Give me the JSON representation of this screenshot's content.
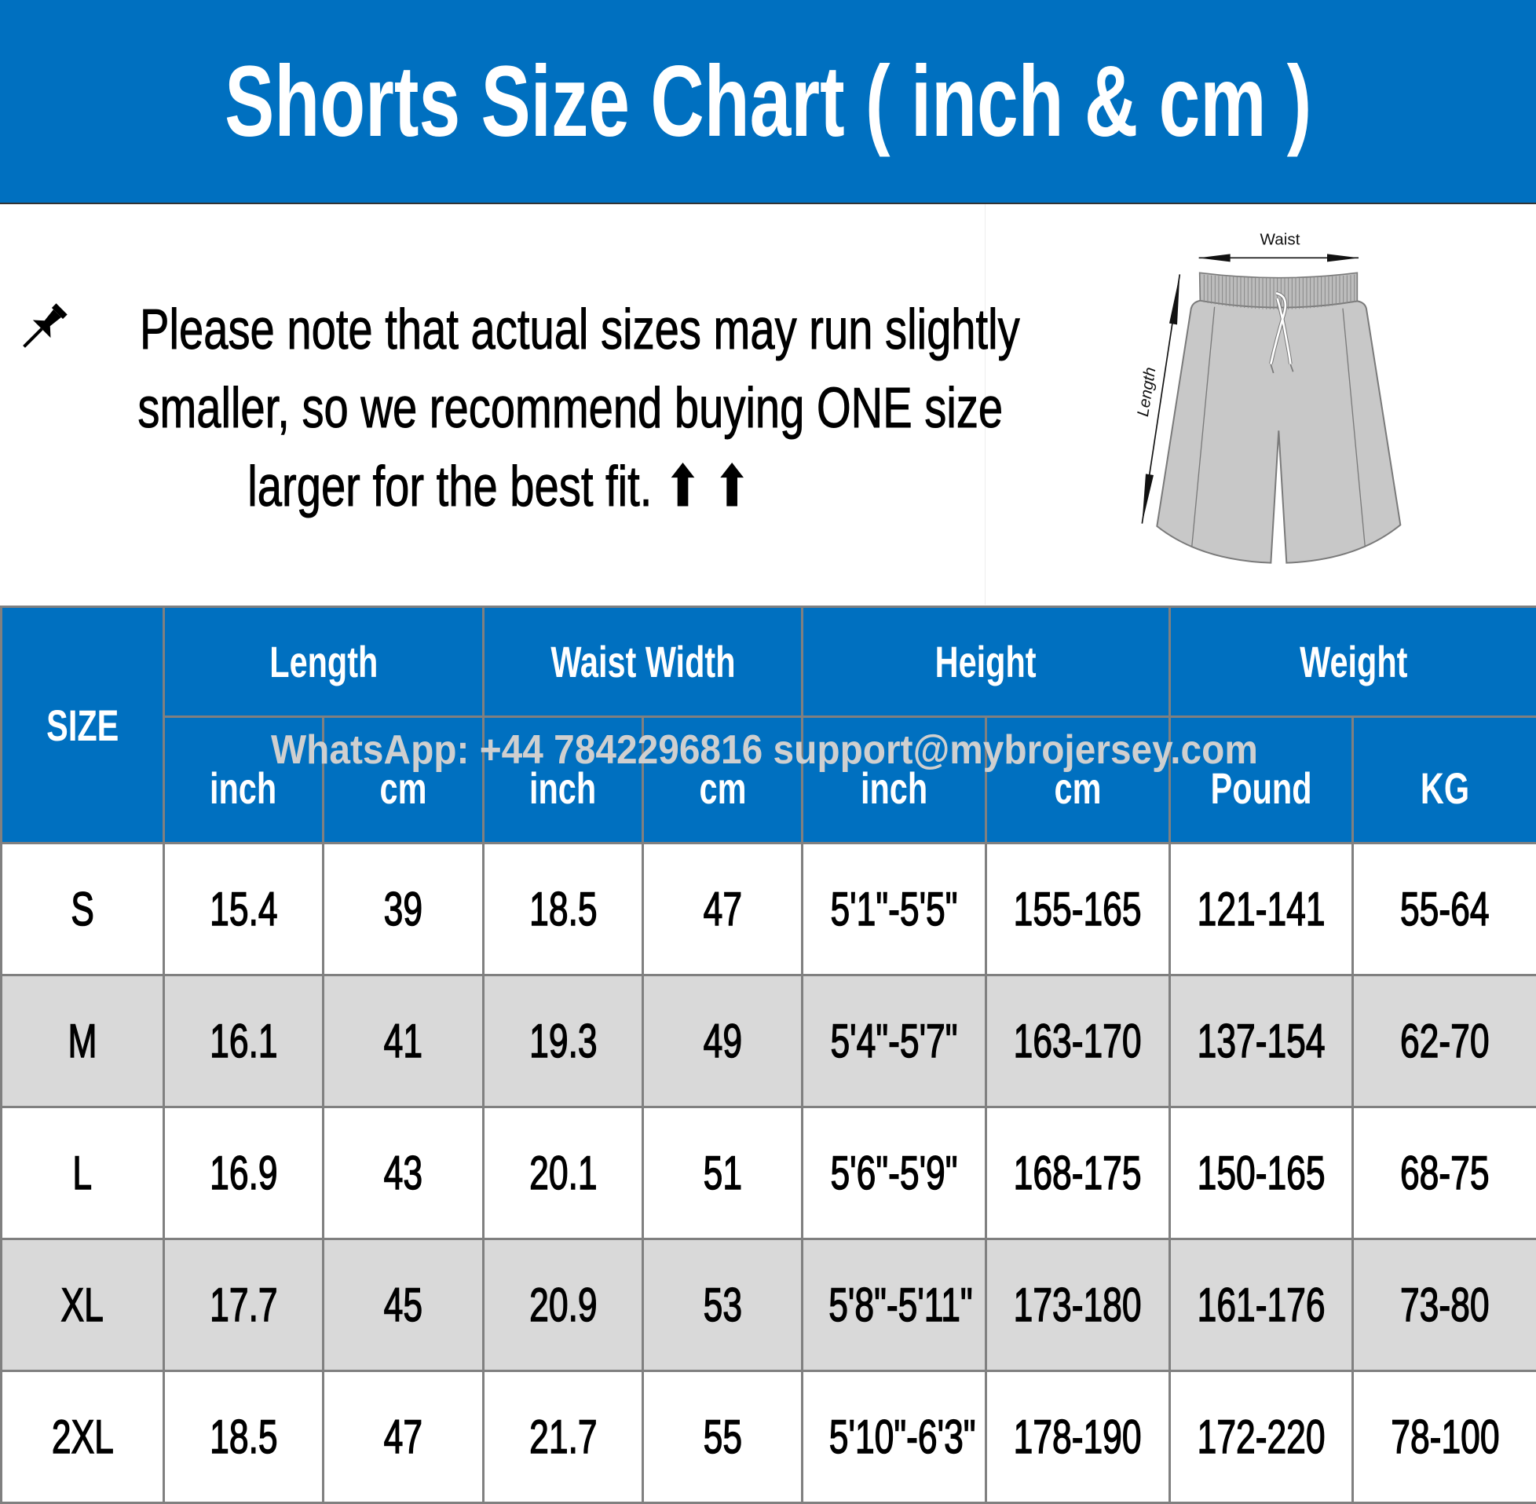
{
  "header": {
    "title": "Shorts Size Chart ( inch & cm )"
  },
  "note": {
    "icon": "pushpin-icon",
    "lines": [
      "Please note that actual sizes may run slightly",
      "smaller, so we recommend buying ONE size",
      "larger for the best fit. ⬆ ⬆"
    ]
  },
  "diagram": {
    "waist_label": "Waist",
    "length_label": "Length"
  },
  "colors": {
    "header_blue": "#0070C0",
    "alt_row": "#D9D9D9",
    "border": "#808080"
  },
  "watermark": "WhatsApp: +44 7842296816  support@mybrojersey.com",
  "table": {
    "size_header": "SIZE",
    "groups": [
      "Length",
      "Waist Width",
      "Height",
      "Weight"
    ],
    "subheaders": [
      "inch",
      "cm",
      "inch",
      "cm",
      "inch",
      "cm",
      "Pound",
      "KG"
    ],
    "rows": [
      [
        "S",
        "15.4",
        "39",
        "18.5",
        "47",
        "5'1\"-5'5\"",
        "155-165",
        "121-141",
        "55-64"
      ],
      [
        "M",
        "16.1",
        "41",
        "19.3",
        "49",
        "5'4\"-5'7\"",
        "163-170",
        "137-154",
        "62-70"
      ],
      [
        "L",
        "16.9",
        "43",
        "20.1",
        "51",
        "5'6\"-5'9\"",
        "168-175",
        "150-165",
        "68-75"
      ],
      [
        "XL",
        "17.7",
        "45",
        "20.9",
        "53",
        "5'8\"-5'11\"",
        "173-180",
        "161-176",
        "73-80"
      ],
      [
        "2XL",
        "18.5",
        "47",
        "21.7",
        "55",
        "5'10\"-6'3\"",
        "178-190",
        "172-220",
        "78-100"
      ]
    ]
  }
}
